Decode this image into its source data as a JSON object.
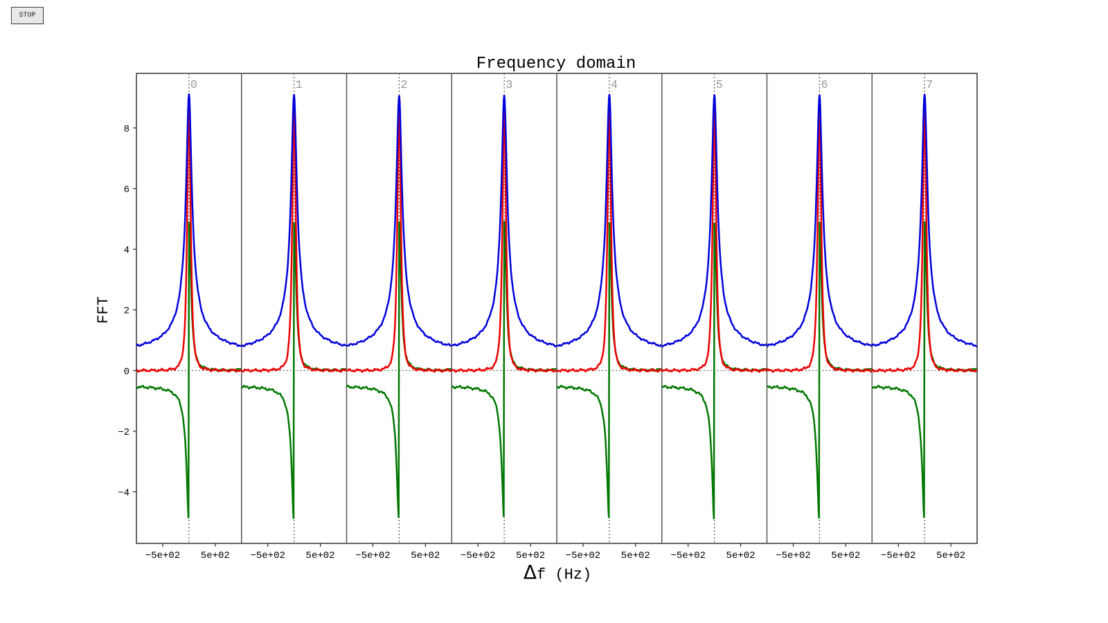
{
  "controls": {
    "stop_label": "STOP"
  },
  "chart_data": {
    "type": "line",
    "title": "Frequency domain",
    "xlabel_symbol": "Δ",
    "xlabel_rest": "f (Hz)",
    "ylabel": "FFT",
    "grid": false,
    "ylim": [
      -5.7,
      9.8
    ],
    "yticks": [
      -4,
      -2,
      0,
      2,
      4,
      6,
      8
    ],
    "panel_xlim": [
      -1000,
      1000
    ],
    "panel_xticks": [
      -500,
      500
    ],
    "panel_xtick_labels": [
      "−5e+02",
      "5e+02"
    ],
    "ytick_labels": [
      "−4",
      "−2",
      "0",
      "2",
      "4",
      "6",
      "8"
    ],
    "panel_labels": [
      "0",
      "1",
      "2",
      "3",
      "4",
      "5",
      "6",
      "7"
    ],
    "series_model": {
      "peak_freq": 0,
      "freq_range": [
        -1000,
        1000
      ],
      "blue_magnitude_peak": 9.1,
      "red_real_peak": 8.7,
      "green_imag_peak": 4.9,
      "green_imag_min": -4.9,
      "baseline_blue": 0.5,
      "baseline_green": -0.5
    },
    "series_colors": {
      "magnitude": "#0000dd",
      "real": "#ee0000",
      "imag": "#007700"
    },
    "reference_line_color": "#555555"
  }
}
